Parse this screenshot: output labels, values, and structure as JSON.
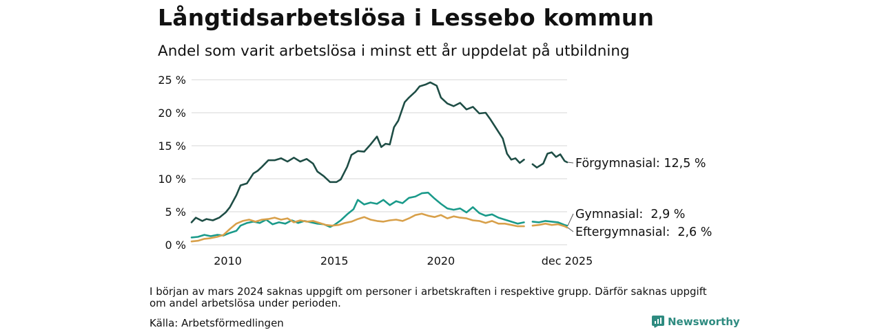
{
  "header": {
    "title": "Långtidsarbetslösa i Lessebo kommun",
    "subtitle": "Andel som varit arbetslösa i minst ett år uppdelat på utbildning"
  },
  "footer": {
    "note": "I början av mars 2024 saknas uppgift om personer i arbetskraften i respektive grupp. Därför saknas uppgift om andel arbetslösa under perioden.",
    "source": "Källa: Arbetsförmedlingen",
    "brand": "Newsworthy"
  },
  "colors": {
    "forgymnasial": "#1e4d45",
    "gymnasial": "#1a9a8a",
    "eftergymnasial": "#d8a04a",
    "grid": "#dddddd"
  },
  "chart_data": {
    "type": "line",
    "ylim": [
      0,
      25
    ],
    "xlim": [
      2008.3,
      2025.92
    ],
    "y_ticks": [
      {
        "v": 0,
        "label": "0 %"
      },
      {
        "v": 5,
        "label": "5 %"
      },
      {
        "v": 10,
        "label": "10 %"
      },
      {
        "v": 15,
        "label": "15 %"
      },
      {
        "v": 20,
        "label": "20 %"
      },
      {
        "v": 25,
        "label": "25 %"
      }
    ],
    "x_ticks": [
      {
        "v": 2010,
        "label": "2010"
      },
      {
        "v": 2015,
        "label": "2015"
      },
      {
        "v": 2020,
        "label": "2020"
      },
      {
        "v": 2025.92,
        "label": "dec 2025"
      }
    ],
    "gap": [
      2024.1,
      2024.3
    ],
    "series": [
      {
        "key": "forgymnasial",
        "name": "Förgymnasial",
        "end_label": "Förgymnasial: 12,5 %",
        "points": [
          [
            2008.3,
            3.4
          ],
          [
            2008.5,
            4.1
          ],
          [
            2008.8,
            3.6
          ],
          [
            2009.0,
            3.9
          ],
          [
            2009.3,
            3.7
          ],
          [
            2009.6,
            4.1
          ],
          [
            2009.9,
            4.9
          ],
          [
            2010.1,
            5.7
          ],
          [
            2010.4,
            7.5
          ],
          [
            2010.6,
            9.0
          ],
          [
            2010.9,
            9.3
          ],
          [
            2011.2,
            10.8
          ],
          [
            2011.4,
            11.2
          ],
          [
            2011.6,
            11.8
          ],
          [
            2011.9,
            12.8
          ],
          [
            2012.2,
            12.8
          ],
          [
            2012.5,
            13.1
          ],
          [
            2012.8,
            12.6
          ],
          [
            2013.1,
            13.2
          ],
          [
            2013.4,
            12.6
          ],
          [
            2013.7,
            13.0
          ],
          [
            2014.0,
            12.3
          ],
          [
            2014.2,
            11.1
          ],
          [
            2014.5,
            10.4
          ],
          [
            2014.8,
            9.5
          ],
          [
            2015.1,
            9.5
          ],
          [
            2015.3,
            9.9
          ],
          [
            2015.6,
            11.8
          ],
          [
            2015.8,
            13.6
          ],
          [
            2016.1,
            14.2
          ],
          [
            2016.4,
            14.1
          ],
          [
            2016.7,
            15.2
          ],
          [
            2017.0,
            16.4
          ],
          [
            2017.2,
            14.8
          ],
          [
            2017.4,
            15.3
          ],
          [
            2017.6,
            15.2
          ],
          [
            2017.8,
            17.8
          ],
          [
            2018.0,
            18.8
          ],
          [
            2018.3,
            21.6
          ],
          [
            2018.5,
            22.3
          ],
          [
            2018.8,
            23.2
          ],
          [
            2019.0,
            24.0
          ],
          [
            2019.3,
            24.3
          ],
          [
            2019.5,
            24.6
          ],
          [
            2019.8,
            24.1
          ],
          [
            2020.0,
            22.3
          ],
          [
            2020.3,
            21.4
          ],
          [
            2020.6,
            21.0
          ],
          [
            2020.9,
            21.5
          ],
          [
            2021.2,
            20.5
          ],
          [
            2021.5,
            20.9
          ],
          [
            2021.8,
            19.9
          ],
          [
            2022.1,
            20.0
          ],
          [
            2022.3,
            19.1
          ],
          [
            2022.6,
            17.6
          ],
          [
            2022.9,
            16.1
          ],
          [
            2023.1,
            13.8
          ],
          [
            2023.3,
            12.9
          ],
          [
            2023.5,
            13.1
          ],
          [
            2023.7,
            12.4
          ],
          [
            2023.9,
            12.9
          ],
          null,
          [
            2024.3,
            12.2
          ],
          [
            2024.5,
            11.7
          ],
          [
            2024.8,
            12.3
          ],
          [
            2025.0,
            13.8
          ],
          [
            2025.2,
            14.0
          ],
          [
            2025.4,
            13.3
          ],
          [
            2025.6,
            13.7
          ],
          [
            2025.8,
            12.7
          ],
          [
            2025.92,
            12.5
          ]
        ]
      },
      {
        "key": "gymnasial",
        "name": "Gymnasial",
        "end_label": "Gymnasial:  2,9 %",
        "points": [
          [
            2008.3,
            1.1
          ],
          [
            2008.6,
            1.2
          ],
          [
            2008.9,
            1.5
          ],
          [
            2009.2,
            1.3
          ],
          [
            2009.5,
            1.5
          ],
          [
            2009.8,
            1.4
          ],
          [
            2010.1,
            1.8
          ],
          [
            2010.4,
            2.1
          ],
          [
            2010.6,
            2.9
          ],
          [
            2010.9,
            3.3
          ],
          [
            2011.2,
            3.5
          ],
          [
            2011.5,
            3.3
          ],
          [
            2011.8,
            3.8
          ],
          [
            2012.1,
            3.1
          ],
          [
            2012.4,
            3.4
          ],
          [
            2012.7,
            3.2
          ],
          [
            2013.0,
            3.7
          ],
          [
            2013.3,
            3.3
          ],
          [
            2013.6,
            3.6
          ],
          [
            2013.9,
            3.4
          ],
          [
            2014.2,
            3.2
          ],
          [
            2014.5,
            3.1
          ],
          [
            2014.8,
            2.7
          ],
          [
            2015.0,
            3.0
          ],
          [
            2015.3,
            3.7
          ],
          [
            2015.6,
            4.6
          ],
          [
            2015.9,
            5.4
          ],
          [
            2016.1,
            6.8
          ],
          [
            2016.4,
            6.1
          ],
          [
            2016.7,
            6.4
          ],
          [
            2017.0,
            6.2
          ],
          [
            2017.3,
            6.8
          ],
          [
            2017.6,
            6.0
          ],
          [
            2017.9,
            6.6
          ],
          [
            2018.2,
            6.3
          ],
          [
            2018.5,
            7.1
          ],
          [
            2018.8,
            7.3
          ],
          [
            2019.1,
            7.8
          ],
          [
            2019.4,
            7.9
          ],
          [
            2019.7,
            7.0
          ],
          [
            2020.0,
            6.2
          ],
          [
            2020.3,
            5.5
          ],
          [
            2020.6,
            5.3
          ],
          [
            2020.9,
            5.5
          ],
          [
            2021.2,
            4.9
          ],
          [
            2021.5,
            5.7
          ],
          [
            2021.8,
            4.8
          ],
          [
            2022.1,
            4.4
          ],
          [
            2022.4,
            4.6
          ],
          [
            2022.7,
            4.1
          ],
          [
            2023.0,
            3.8
          ],
          [
            2023.3,
            3.5
          ],
          [
            2023.6,
            3.2
          ],
          [
            2023.9,
            3.4
          ],
          null,
          [
            2024.3,
            3.5
          ],
          [
            2024.6,
            3.4
          ],
          [
            2024.9,
            3.6
          ],
          [
            2025.2,
            3.5
          ],
          [
            2025.5,
            3.4
          ],
          [
            2025.8,
            3.0
          ],
          [
            2025.92,
            2.9
          ]
        ]
      },
      {
        "key": "eftergymnasial",
        "name": "Eftergymnasial",
        "end_label": "Eftergymnasial:  2,6 %",
        "points": [
          [
            2008.3,
            0.5
          ],
          [
            2008.6,
            0.6
          ],
          [
            2008.9,
            0.9
          ],
          [
            2009.2,
            1.0
          ],
          [
            2009.5,
            1.2
          ],
          [
            2009.8,
            1.5
          ],
          [
            2010.1,
            2.4
          ],
          [
            2010.4,
            3.2
          ],
          [
            2010.7,
            3.6
          ],
          [
            2011.0,
            3.8
          ],
          [
            2011.3,
            3.5
          ],
          [
            2011.6,
            3.8
          ],
          [
            2011.9,
            3.9
          ],
          [
            2012.2,
            4.1
          ],
          [
            2012.5,
            3.8
          ],
          [
            2012.8,
            4.0
          ],
          [
            2013.1,
            3.4
          ],
          [
            2013.4,
            3.7
          ],
          [
            2013.7,
            3.5
          ],
          [
            2014.0,
            3.6
          ],
          [
            2014.3,
            3.3
          ],
          [
            2014.6,
            3.0
          ],
          [
            2014.9,
            2.9
          ],
          [
            2015.2,
            3.0
          ],
          [
            2015.5,
            3.3
          ],
          [
            2015.8,
            3.5
          ],
          [
            2016.1,
            3.9
          ],
          [
            2016.4,
            4.2
          ],
          [
            2016.7,
            3.8
          ],
          [
            2017.0,
            3.6
          ],
          [
            2017.3,
            3.5
          ],
          [
            2017.6,
            3.7
          ],
          [
            2017.9,
            3.8
          ],
          [
            2018.2,
            3.6
          ],
          [
            2018.5,
            4.0
          ],
          [
            2018.8,
            4.5
          ],
          [
            2019.1,
            4.7
          ],
          [
            2019.4,
            4.4
          ],
          [
            2019.7,
            4.2
          ],
          [
            2020.0,
            4.5
          ],
          [
            2020.3,
            4.0
          ],
          [
            2020.6,
            4.3
          ],
          [
            2020.9,
            4.1
          ],
          [
            2021.2,
            4.0
          ],
          [
            2021.5,
            3.7
          ],
          [
            2021.8,
            3.6
          ],
          [
            2022.1,
            3.3
          ],
          [
            2022.4,
            3.6
          ],
          [
            2022.7,
            3.2
          ],
          [
            2023.0,
            3.2
          ],
          [
            2023.3,
            3.0
          ],
          [
            2023.6,
            2.8
          ],
          [
            2023.9,
            2.8
          ],
          null,
          [
            2024.3,
            2.9
          ],
          [
            2024.6,
            3.0
          ],
          [
            2024.9,
            3.2
          ],
          [
            2025.2,
            3.0
          ],
          [
            2025.5,
            3.1
          ],
          [
            2025.8,
            2.8
          ],
          [
            2025.92,
            2.6
          ]
        ]
      }
    ]
  }
}
